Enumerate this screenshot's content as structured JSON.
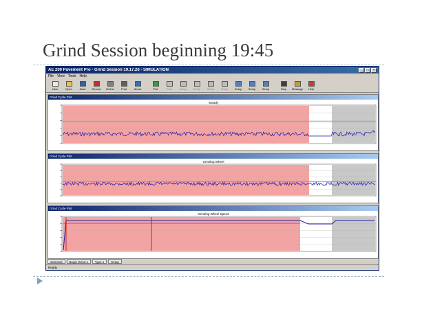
{
  "slide": {
    "title": "Grind Session beginning 19:45"
  },
  "window": {
    "title": "AE 200 Pavement Pro - Grind Session 19.17.26 - SIMULATION",
    "menu": [
      "File",
      "View",
      "Tools",
      "Help"
    ],
    "toolbar": [
      {
        "label": "New",
        "icon": "new-icon",
        "enabled": true
      },
      {
        "label": "Open",
        "icon": "open-icon",
        "enabled": true
      },
      {
        "label": "Save",
        "icon": "save-icon",
        "enabled": true
      },
      {
        "label": "Record",
        "icon": "record-icon",
        "enabled": true
      },
      {
        "label": "Define",
        "icon": "define-icon",
        "enabled": true
      },
      {
        "label": "Print",
        "icon": "print-icon",
        "enabled": true
      },
      {
        "label": "About",
        "icon": "about-icon",
        "enabled": true
      },
      {
        "label": "Plot",
        "icon": "plot-icon",
        "enabled": true
      },
      {
        "label": "Print",
        "icon": "print-icon",
        "enabled": false
      },
      {
        "label": "Setup",
        "icon": "setup-icon",
        "enabled": false
      },
      {
        "label": "Setup",
        "icon": "setup-icon",
        "enabled": false
      },
      {
        "label": "Setup",
        "icon": "setup-icon",
        "enabled": false
      },
      {
        "label": "Setup",
        "icon": "setup-icon",
        "enabled": false
      },
      {
        "label": "Setup",
        "icon": "setup-icon",
        "enabled": true
      },
      {
        "label": "Setup",
        "icon": "setup-icon",
        "enabled": true
      },
      {
        "label": "Setup",
        "icon": "setup-icon",
        "enabled": true
      },
      {
        "label": "Stop",
        "icon": "stop-icon",
        "enabled": true
      },
      {
        "label": "Message",
        "icon": "message-icon",
        "enabled": true
      },
      {
        "label": "Help",
        "icon": "help-icon",
        "enabled": true
      }
    ],
    "status": "Ready",
    "colors": {
      "title_bar": "#0a246a",
      "alarm_zone": "#f4a3a3",
      "idle_zone": "#c8c8c8",
      "trace": "#1f1fa0",
      "limit": "#3fcf3f"
    }
  },
  "panes": [
    {
      "title": "Grind Cycle Plot",
      "heading": "Steady"
    },
    {
      "title": "Grind Cycle Plot",
      "heading": "Grinding Wheel"
    },
    {
      "title": "Grind Cycle Plot",
      "heading": "Grinding Wheel Speed"
    }
  ],
  "tabs": [
    "Selected",
    "Begin Grind",
    "Type",
    "Setup"
  ]
}
